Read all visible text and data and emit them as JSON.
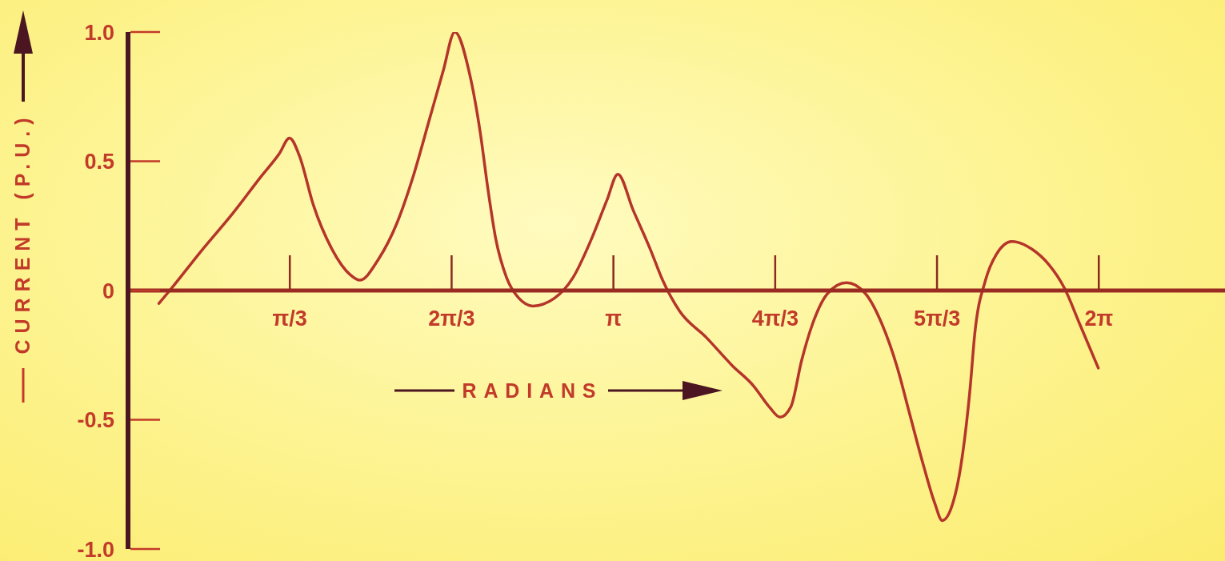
{
  "chart_data": {
    "type": "line",
    "xlabel": "RADIANS",
    "ylabel": "CURRENT (P.U.)",
    "x": [
      0.2,
      0.27,
      0.47,
      0.68,
      0.86,
      0.98,
      1.045,
      1.11,
      1.2,
      1.32,
      1.44,
      1.5,
      1.62,
      1.74,
      1.85,
      1.95,
      2.04,
      2.115,
      2.21,
      2.28,
      2.33,
      2.38,
      2.45,
      2.53,
      2.62,
      2.76,
      2.88,
      3.0,
      3.1,
      3.17,
      3.27,
      3.38,
      3.46,
      3.57,
      3.74,
      3.91,
      4.05,
      4.15,
      4.22,
      4.29,
      4.36,
      4.43,
      4.53,
      4.65,
      4.77,
      4.88,
      4.98,
      5.06,
      5.15,
      5.22,
      5.27,
      5.34,
      5.39,
      5.45,
      5.48,
      5.55,
      5.62,
      5.72,
      5.85,
      5.96,
      6.06,
      6.16,
      6.28
    ],
    "values": [
      -0.05,
      0.0,
      0.15,
      0.3,
      0.44,
      0.53,
      0.59,
      0.52,
      0.33,
      0.16,
      0.06,
      0.04,
      0.12,
      0.26,
      0.45,
      0.66,
      0.85,
      1.0,
      0.84,
      0.61,
      0.39,
      0.2,
      0.05,
      -0.03,
      -0.06,
      -0.03,
      0.05,
      0.2,
      0.35,
      0.45,
      0.31,
      0.16,
      0.04,
      -0.08,
      -0.18,
      -0.29,
      -0.37,
      -0.45,
      -0.49,
      -0.45,
      -0.27,
      -0.13,
      -0.01,
      0.03,
      -0.01,
      -0.13,
      -0.3,
      -0.48,
      -0.68,
      -0.82,
      -0.89,
      -0.82,
      -0.68,
      -0.38,
      -0.17,
      0.04,
      0.14,
      0.19,
      0.16,
      0.1,
      0.01,
      -0.13,
      -0.3
    ],
    "color": "#b5352a",
    "marker": "none",
    "xlim": [
      0,
      7.1
    ],
    "xticks": [
      {
        "value": 1.0472,
        "label": "π/3"
      },
      {
        "value": 2.0944,
        "label": "2π/3"
      },
      {
        "value": 3.1416,
        "label": "π"
      },
      {
        "value": 4.1888,
        "label": "4π/3"
      },
      {
        "value": 5.236,
        "label": "5π/3"
      },
      {
        "value": 6.2832,
        "label": "2π"
      }
    ],
    "ylim": [
      -1,
      1
    ],
    "yticks": [
      {
        "value": 1,
        "label": "1.0"
      },
      {
        "value": 0.5,
        "label": "0.5"
      },
      {
        "value": 0,
        "label": "0"
      },
      {
        "value": -0.5,
        "label": "-0.5"
      },
      {
        "value": -1,
        "label": "-1.0"
      }
    ]
  }
}
